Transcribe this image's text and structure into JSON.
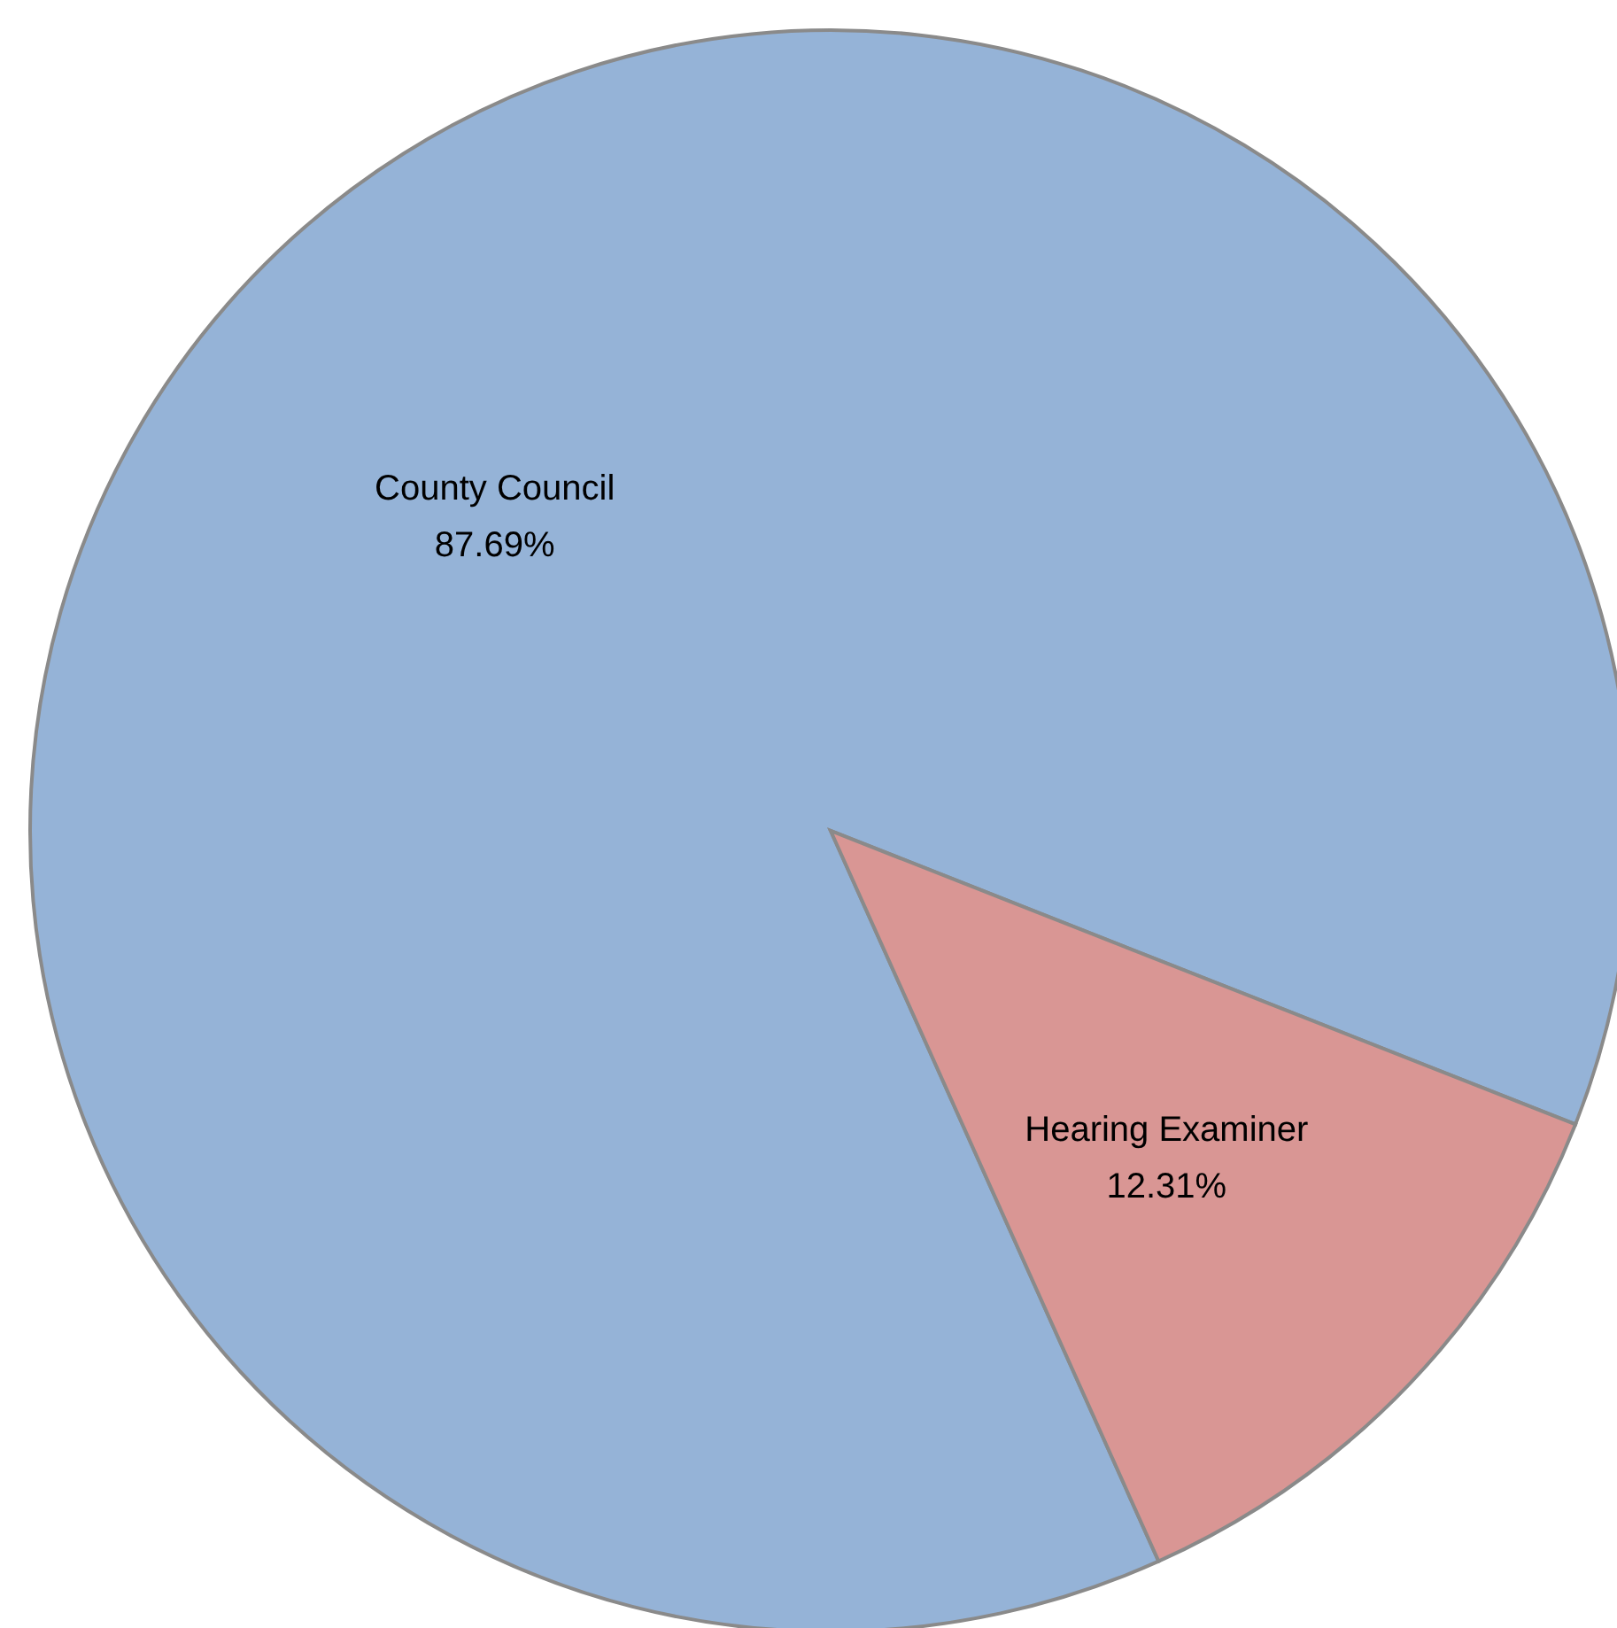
{
  "chart_data": {
    "type": "pie",
    "categories": [
      "County Council",
      "Hearing Examiner"
    ],
    "values": [
      87.69,
      12.31
    ],
    "colors": [
      "#95b3d7",
      "#d99694"
    ],
    "value_labels": [
      "87.69%",
      "12.31%"
    ],
    "legend": false
  }
}
